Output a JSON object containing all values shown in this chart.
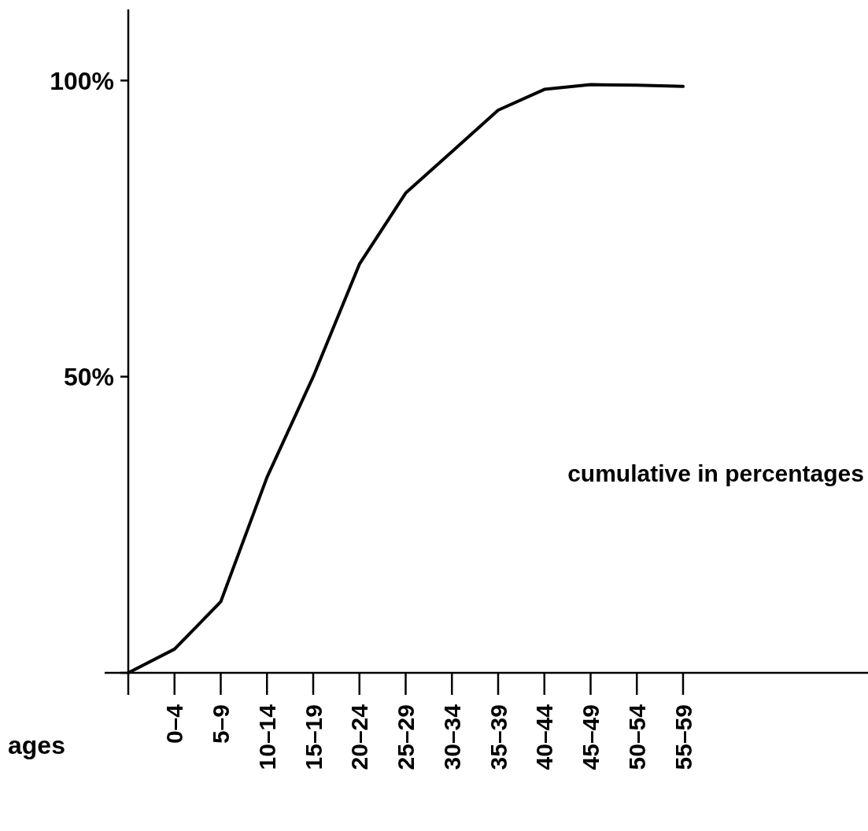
{
  "chart_data": {
    "type": "line",
    "xlabel": "ages",
    "categories": [
      null,
      "0–4",
      "5–9",
      "10–14",
      "15–19",
      "20–24",
      "25–29",
      "30–34",
      "35–39",
      "40–44",
      "45–49",
      "50–54",
      "55–59"
    ],
    "series": [
      {
        "color": "#000000",
        "values": [
          0,
          4,
          12,
          33,
          50,
          69,
          81,
          88,
          95,
          98.5,
          99.3,
          99.2,
          99
        ]
      }
    ],
    "ylim": [
      0,
      112
    ],
    "yticks": [
      {
        "value": 0,
        "label": null
      },
      {
        "value": 50,
        "label": "50%"
      },
      {
        "value": 100,
        "label": "100%"
      }
    ],
    "annotations": [
      "cumulative in percentages"
    ],
    "line_style": "solid"
  }
}
